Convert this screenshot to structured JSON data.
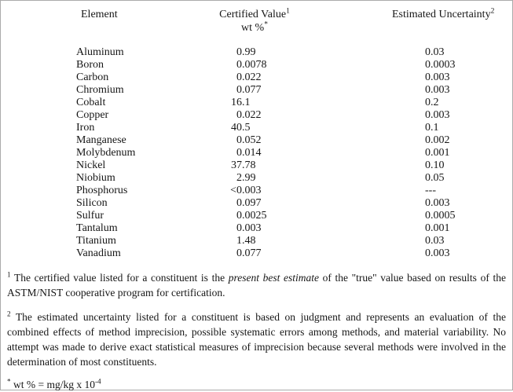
{
  "page": {
    "background": "#ffffff",
    "border_color": "#ababab",
    "text_color": "#161616"
  },
  "table": {
    "headers": {
      "element": "Element",
      "certified_value_label": "Certified Value",
      "certified_value_sup": "1",
      "certified_value_unit": "wt %",
      "certified_value_unit_sup": "*",
      "estimated_uncertainty_label": "Estimated Uncertainty",
      "estimated_uncertainty_sup": "2"
    },
    "rows": [
      {
        "element": "Aluminum",
        "value": "0.99",
        "value_int": "0",
        "value_frac": ".99",
        "uncertainty": "0.03"
      },
      {
        "element": "Boron",
        "value": "0.0078",
        "value_int": "0",
        "value_frac": ".0078",
        "uncertainty": "0.0003"
      },
      {
        "element": "Carbon",
        "value": "0.022",
        "value_int": "0",
        "value_frac": ".022",
        "uncertainty": "0.003"
      },
      {
        "element": "Chromium",
        "value": "0.077",
        "value_int": "0",
        "value_frac": ".077",
        "uncertainty": "0.003"
      },
      {
        "element": "Cobalt",
        "value": "16.1",
        "value_int": "16",
        "value_frac": ".1",
        "uncertainty": "0.2"
      },
      {
        "element": "Copper",
        "value": "0.022",
        "value_int": "0",
        "value_frac": ".022",
        "uncertainty": "0.003"
      },
      {
        "element": "Iron",
        "value": "40.5",
        "value_int": "40",
        "value_frac": ".5",
        "uncertainty": "0.1"
      },
      {
        "element": "Manganese",
        "value": "0.052",
        "value_int": "0",
        "value_frac": ".052",
        "uncertainty": "0.002"
      },
      {
        "element": "Molybdenum",
        "value": "0.014",
        "value_int": "0",
        "value_frac": ".014",
        "uncertainty": "0.001"
      },
      {
        "element": "Nickel",
        "value": "37.78",
        "value_int": "37",
        "value_frac": ".78",
        "uncertainty": "0.10"
      },
      {
        "element": "Niobium",
        "value": "2.99",
        "value_int": "2",
        "value_frac": ".99",
        "uncertainty": "0.05"
      },
      {
        "element": "Phosphorus",
        "value": "<0.003",
        "value_int": "<0",
        "value_frac": ".003",
        "uncertainty": "---"
      },
      {
        "element": "Silicon",
        "value": "0.097",
        "value_int": "0",
        "value_frac": ".097",
        "uncertainty": "0.003"
      },
      {
        "element": "Sulfur",
        "value": "0.0025",
        "value_int": "0",
        "value_frac": ".0025",
        "uncertainty": "0.0005"
      },
      {
        "element": "Tantalum",
        "value": "0.003",
        "value_int": "0",
        "value_frac": ".003",
        "uncertainty": "0.001"
      },
      {
        "element": "Titanium",
        "value": "1.48",
        "value_int": "1",
        "value_frac": ".48",
        "uncertainty": "0.03"
      },
      {
        "element": "Vanadium",
        "value": "0.077",
        "value_int": "0",
        "value_frac": ".077",
        "uncertainty": "0.003"
      }
    ]
  },
  "footnotes": {
    "certified": {
      "marker": "1",
      "text_before": "The certified value listed for a constituent is the ",
      "italic": "present best estimate",
      "text_after": " of the \"true\" value based on results of the ASTM/NIST cooperative program for certification."
    },
    "uncertainty": {
      "marker": "2",
      "text": "The estimated uncertainty listed for a constituent is based on judgment and represents an evaluation of the combined effects of method imprecision, possible systematic errors among methods, and material variability.  No attempt was made to derive exact statistical measures of imprecision because several methods were involved in the determination of most constituents."
    },
    "wt_percent": {
      "marker": "*",
      "text": "wt % = mg/kg x 10",
      "exponent": "-4"
    }
  }
}
